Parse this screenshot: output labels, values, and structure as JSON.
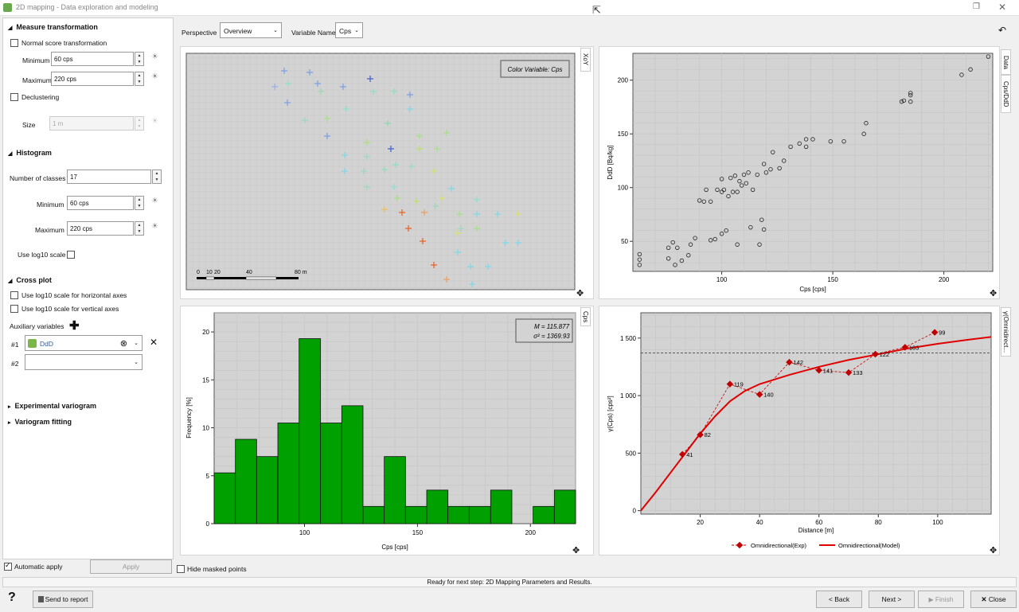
{
  "window": {
    "title": "2D mapping - Data exploration and modeling"
  },
  "icons": {
    "app": "app-icon",
    "restore": "restore-icon",
    "close": "close-icon",
    "cursor": "cursor-icon",
    "back_arrow": "undo-arrow-icon",
    "expand": "expand-arrows-icon",
    "help": "help-icon",
    "bulb": "bulb-icon",
    "add": "plus-icon",
    "clear": "clear-circle-icon"
  },
  "colors": {
    "accent_green": "#00a000",
    "model_red": "#e00000",
    "exp_red": "#c00000"
  },
  "left": {
    "measure": {
      "title": "Measure transformation",
      "normal_score": "Normal score transformation",
      "min_label": "Minimum",
      "min_value": "60 cps",
      "max_label": "Maximum",
      "max_value": "220 cps",
      "declustering": "Declustering",
      "size_label": "Size",
      "size_value": "1 m"
    },
    "histogram": {
      "title": "Histogram",
      "classes_label": "Number of classes",
      "classes_value": "17",
      "min_label": "Minimum",
      "min_value": "60 cps",
      "max_label": "Maximum",
      "max_value": "220 cps",
      "log10_label": "Use log10 scale"
    },
    "crossplot": {
      "title": "Cross plot",
      "log_h": "Use log10 scale for horizontal axes",
      "log_v": "Use log10 scale for vertical axes",
      "aux_label": "Auxiliary variables",
      "row1_label": "#1",
      "row1_value": "DdD",
      "row2_label": "#2",
      "row2_value": ""
    },
    "exp_variogram": "Experimental variogram",
    "variogram_fitting": "Variogram fitting",
    "auto_apply": "Automatic apply",
    "apply_button": "Apply"
  },
  "toolbar": {
    "perspective_label": "Perspective",
    "perspective_value": "Overview",
    "variable_label": "Variable Name",
    "variable_value": "Cps"
  },
  "tabs": {
    "map": "XoY",
    "scatter_data": "Data",
    "scatter_cps": "Cps/DdD",
    "hist": "Cps",
    "vario": "γ(Omnidirect..."
  },
  "map": {
    "legend": "Color Variable: Cps",
    "scale_ticks": [
      "0",
      "10",
      "20",
      "40",
      "80 m"
    ]
  },
  "hist": {
    "stats_mean": "M = 115.877",
    "stats_var": "σ² = 1369.93"
  },
  "chart_data": [
    {
      "type": "scatter",
      "title": "",
      "xlabel": "Cps [cps]",
      "ylabel": "DdD [Bq/kg]",
      "xlim": [
        60,
        222
      ],
      "ylim": [
        22,
        225
      ],
      "xticks": [
        100,
        150,
        200
      ],
      "yticks": [
        50,
        100,
        150,
        200
      ],
      "grid": true,
      "points": [
        [
          63,
          38
        ],
        [
          63,
          33
        ],
        [
          63,
          28
        ],
        [
          76,
          44
        ],
        [
          76,
          34
        ],
        [
          78,
          49
        ],
        [
          79,
          28
        ],
        [
          80,
          44
        ],
        [
          82,
          32
        ],
        [
          85,
          37
        ],
        [
          86,
          47
        ],
        [
          88,
          53
        ],
        [
          90,
          88
        ],
        [
          92,
          87
        ],
        [
          93,
          98
        ],
        [
          95,
          51
        ],
        [
          95,
          87
        ],
        [
          97,
          52
        ],
        [
          98,
          98
        ],
        [
          100,
          96
        ],
        [
          100,
          57
        ],
        [
          100,
          108
        ],
        [
          101,
          98
        ],
        [
          102,
          60
        ],
        [
          103,
          92
        ],
        [
          104,
          109
        ],
        [
          105,
          96
        ],
        [
          106,
          111
        ],
        [
          107,
          96
        ],
        [
          107,
          47
        ],
        [
          108,
          106
        ],
        [
          109,
          102
        ],
        [
          110,
          112
        ],
        [
          111,
          104
        ],
        [
          112,
          114
        ],
        [
          113,
          63
        ],
        [
          114,
          98
        ],
        [
          116,
          112
        ],
        [
          117,
          47
        ],
        [
          118,
          70
        ],
        [
          119,
          122
        ],
        [
          119,
          61
        ],
        [
          120,
          114
        ],
        [
          122,
          117
        ],
        [
          123,
          133
        ],
        [
          126,
          118
        ],
        [
          128,
          125
        ],
        [
          131,
          138
        ],
        [
          135,
          141
        ],
        [
          138,
          145
        ],
        [
          138,
          138
        ],
        [
          141,
          145
        ],
        [
          149,
          143
        ],
        [
          155,
          143
        ],
        [
          164,
          150
        ],
        [
          165,
          160
        ],
        [
          181,
          180
        ],
        [
          182,
          181
        ],
        [
          185,
          186
        ],
        [
          185,
          180
        ],
        [
          185,
          188
        ],
        [
          208,
          205
        ],
        [
          212,
          210
        ],
        [
          220,
          222
        ]
      ]
    },
    {
      "type": "bar",
      "title": "",
      "xlabel": "Cps [cps]",
      "ylabel": "Frequency [%]",
      "xlim": [
        60,
        220
      ],
      "ylim": [
        0,
        22
      ],
      "xticks": [
        100,
        150,
        200
      ],
      "yticks": [
        0,
        5,
        10,
        15,
        20
      ],
      "grid": true,
      "bin_edges": [
        60,
        69.4,
        78.8,
        88.2,
        97.6,
        107.1,
        116.5,
        125.9,
        135.3,
        144.7,
        154.1,
        163.5,
        172.9,
        182.4,
        191.8,
        201.2,
        210.6,
        220
      ],
      "values": [
        5.3,
        8.8,
        7.0,
        10.5,
        19.3,
        10.5,
        12.3,
        1.8,
        7.0,
        1.8,
        3.5,
        1.8,
        1.8,
        3.5,
        0,
        1.8,
        3.5
      ]
    },
    {
      "type": "line",
      "title": "",
      "xlabel": "Distance [m]",
      "ylabel": "γ(Cps) [cps²]",
      "xlim": [
        0,
        118
      ],
      "ylim": [
        -30,
        1720
      ],
      "xticks": [
        20,
        40,
        60,
        80,
        100
      ],
      "yticks": [
        0,
        500,
        1000,
        1500
      ],
      "grid": true,
      "sill": 1370,
      "series": [
        {
          "name": "Omnidirectional(Exp)",
          "points": [
            [
              14,
              490
            ],
            [
              20,
              660
            ],
            [
              30,
              1100
            ],
            [
              40,
              1010
            ],
            [
              50,
              1290
            ],
            [
              60,
              1220
            ],
            [
              70,
              1200
            ],
            [
              79,
              1360
            ],
            [
              89,
              1420
            ],
            [
              99,
              1550
            ]
          ],
          "labels": [
            "41",
            "82",
            "119",
            "140",
            "142",
            "141",
            "133",
            "122",
            "103",
            "99"
          ]
        },
        {
          "name": "Omnidirectional(Model)",
          "points": [
            [
              0,
              0
            ],
            [
              5,
              160
            ],
            [
              10,
              330
            ],
            [
              15,
              500
            ],
            [
              20,
              670
            ],
            [
              25,
              820
            ],
            [
              30,
              950
            ],
            [
              35,
              1040
            ],
            [
              40,
              1100
            ],
            [
              50,
              1180
            ],
            [
              60,
              1250
            ],
            [
              70,
              1310
            ],
            [
              80,
              1360
            ],
            [
              90,
              1410
            ],
            [
              100,
              1450
            ],
            [
              110,
              1485
            ],
            [
              118,
              1510
            ]
          ]
        }
      ]
    }
  ],
  "footer": {
    "hide_masked": "Hide masked points",
    "status": "Ready for next step: 2D Mapping Parameters and Results.",
    "help": "?",
    "send_report": "Send to report",
    "back": "< Back",
    "next": "Next >",
    "finish": "Finish",
    "close": "Close"
  }
}
